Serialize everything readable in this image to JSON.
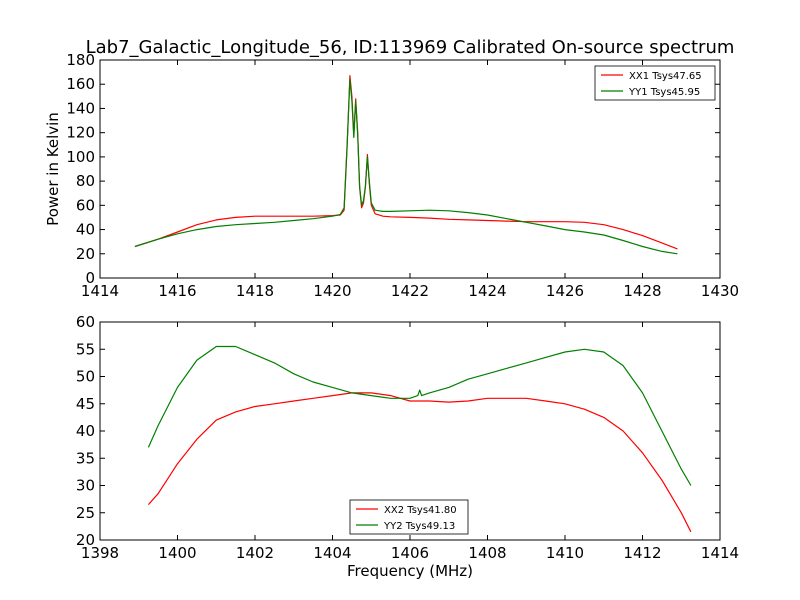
{
  "title": "Lab7_Galactic_Longitude_56, ID:113969 Calibrated On-source spectrum",
  "colors": {
    "xx": "#ff0000",
    "yy": "#008000",
    "frame": "#000000",
    "background": "#ffffff"
  },
  "chart_data": [
    {
      "type": "line",
      "xlabel": "",
      "ylabel": "Power in Kelvin",
      "xlim": [
        1414,
        1430
      ],
      "ylim": [
        0,
        180
      ],
      "xticks": [
        1414,
        1416,
        1418,
        1420,
        1422,
        1424,
        1426,
        1428,
        1430
      ],
      "yticks": [
        0,
        20,
        40,
        60,
        80,
        100,
        120,
        140,
        160,
        180
      ],
      "legend_position": "top-right",
      "grid": false,
      "series": [
        {
          "name": "XX1 Tsys47.65",
          "color": "#ff0000",
          "points": [
            [
              1414.9,
              26
            ],
            [
              1415.5,
              32
            ],
            [
              1416,
              38
            ],
            [
              1416.5,
              44
            ],
            [
              1417,
              48
            ],
            [
              1417.5,
              50
            ],
            [
              1418,
              51
            ],
            [
              1418.5,
              51
            ],
            [
              1419,
              51
            ],
            [
              1419.5,
              51
            ],
            [
              1420,
              51.5
            ],
            [
              1420.2,
              52
            ],
            [
              1420.3,
              56
            ],
            [
              1420.38,
              110
            ],
            [
              1420.45,
              167
            ],
            [
              1420.5,
              150
            ],
            [
              1420.55,
              118
            ],
            [
              1420.6,
              148
            ],
            [
              1420.65,
              120
            ],
            [
              1420.7,
              75
            ],
            [
              1420.75,
              58
            ],
            [
              1420.8,
              62
            ],
            [
              1420.85,
              75
            ],
            [
              1420.9,
              102
            ],
            [
              1420.95,
              78
            ],
            [
              1421,
              60
            ],
            [
              1421.1,
              53
            ],
            [
              1421.3,
              51
            ],
            [
              1421.5,
              50.5
            ],
            [
              1422,
              50
            ],
            [
              1422.5,
              49.5
            ],
            [
              1423,
              48.5
            ],
            [
              1423.5,
              48
            ],
            [
              1424,
              47.5
            ],
            [
              1424.5,
              47
            ],
            [
              1425,
              46.5
            ],
            [
              1425.5,
              46.5
            ],
            [
              1426,
              46.5
            ],
            [
              1426.5,
              46
            ],
            [
              1427,
              44
            ],
            [
              1427.5,
              40
            ],
            [
              1428,
              35
            ],
            [
              1428.5,
              29
            ],
            [
              1428.9,
              24
            ]
          ]
        },
        {
          "name": "YY1 Tsys45.95",
          "color": "#008000",
          "points": [
            [
              1414.9,
              26
            ],
            [
              1415.5,
              32
            ],
            [
              1416,
              36.5
            ],
            [
              1416.5,
              40
            ],
            [
              1417,
              42.5
            ],
            [
              1417.5,
              44
            ],
            [
              1418,
              45
            ],
            [
              1418.5,
              46
            ],
            [
              1419,
              47.5
            ],
            [
              1419.5,
              49
            ],
            [
              1420,
              51
            ],
            [
              1420.2,
              52.5
            ],
            [
              1420.3,
              58
            ],
            [
              1420.38,
              112
            ],
            [
              1420.45,
              164
            ],
            [
              1420.5,
              146
            ],
            [
              1420.55,
              116
            ],
            [
              1420.6,
              146
            ],
            [
              1420.65,
              118
            ],
            [
              1420.7,
              76
            ],
            [
              1420.75,
              60
            ],
            [
              1420.8,
              64
            ],
            [
              1420.85,
              76
            ],
            [
              1420.9,
              100
            ],
            [
              1420.95,
              80
            ],
            [
              1421,
              62
            ],
            [
              1421.1,
              56
            ],
            [
              1421.3,
              55
            ],
            [
              1421.5,
              55
            ],
            [
              1422,
              55.5
            ],
            [
              1422.5,
              56
            ],
            [
              1423,
              55.5
            ],
            [
              1423.5,
              54
            ],
            [
              1424,
              52
            ],
            [
              1424.5,
              49
            ],
            [
              1425,
              46
            ],
            [
              1425.5,
              43
            ],
            [
              1426,
              40
            ],
            [
              1426.5,
              38
            ],
            [
              1427,
              35.5
            ],
            [
              1427.5,
              31
            ],
            [
              1428,
              26
            ],
            [
              1428.5,
              22
            ],
            [
              1428.9,
              20
            ]
          ]
        }
      ]
    },
    {
      "type": "line",
      "xlabel": "Frequency (MHz)",
      "ylabel": "",
      "xlim": [
        1398,
        1414
      ],
      "ylim": [
        20,
        60
      ],
      "xticks": [
        1398,
        1400,
        1402,
        1404,
        1406,
        1408,
        1410,
        1412,
        1414
      ],
      "yticks": [
        20,
        25,
        30,
        35,
        40,
        45,
        50,
        55,
        60
      ],
      "legend_position": "bottom-center",
      "grid": false,
      "series": [
        {
          "name": "XX2 Tsys41.80",
          "color": "#ff0000",
          "points": [
            [
              1399.25,
              26.5
            ],
            [
              1399.5,
              28.5
            ],
            [
              1400,
              34
            ],
            [
              1400.5,
              38.5
            ],
            [
              1401,
              42
            ],
            [
              1401.5,
              43.5
            ],
            [
              1402,
              44.5
            ],
            [
              1402.5,
              45
            ],
            [
              1403,
              45.5
            ],
            [
              1403.5,
              46
            ],
            [
              1404,
              46.5
            ],
            [
              1404.5,
              47
            ],
            [
              1405,
              47
            ],
            [
              1405.5,
              46.5
            ],
            [
              1406,
              45.5
            ],
            [
              1406.5,
              45.5
            ],
            [
              1407,
              45.3
            ],
            [
              1407.5,
              45.5
            ],
            [
              1408,
              46
            ],
            [
              1408.5,
              46
            ],
            [
              1409,
              46
            ],
            [
              1409.5,
              45.5
            ],
            [
              1410,
              45
            ],
            [
              1410.5,
              44
            ],
            [
              1411,
              42.5
            ],
            [
              1411.5,
              40
            ],
            [
              1412,
              36
            ],
            [
              1412.5,
              31
            ],
            [
              1413,
              25
            ],
            [
              1413.25,
              21.5
            ]
          ]
        },
        {
          "name": "YY2 Tsys49.13",
          "color": "#008000",
          "points": [
            [
              1399.25,
              37
            ],
            [
              1399.5,
              41
            ],
            [
              1400,
              48
            ],
            [
              1400.5,
              53
            ],
            [
              1401,
              55.5
            ],
            [
              1401.5,
              55.5
            ],
            [
              1402,
              54
            ],
            [
              1402.5,
              52.5
            ],
            [
              1403,
              50.5
            ],
            [
              1403.5,
              49
            ],
            [
              1404,
              48
            ],
            [
              1404.5,
              47
            ],
            [
              1405,
              46.5
            ],
            [
              1405.5,
              46
            ],
            [
              1406,
              46
            ],
            [
              1406.2,
              46.5
            ],
            [
              1406.25,
              47.5
            ],
            [
              1406.3,
              46.5
            ],
            [
              1406.5,
              47
            ],
            [
              1407,
              48
            ],
            [
              1407.5,
              49.5
            ],
            [
              1408,
              50.5
            ],
            [
              1408.5,
              51.5
            ],
            [
              1409,
              52.5
            ],
            [
              1409.5,
              53.5
            ],
            [
              1410,
              54.5
            ],
            [
              1410.5,
              55
            ],
            [
              1411,
              54.5
            ],
            [
              1411.5,
              52
            ],
            [
              1412,
              47
            ],
            [
              1412.5,
              40
            ],
            [
              1413,
              33
            ],
            [
              1413.25,
              30
            ]
          ]
        }
      ]
    }
  ]
}
